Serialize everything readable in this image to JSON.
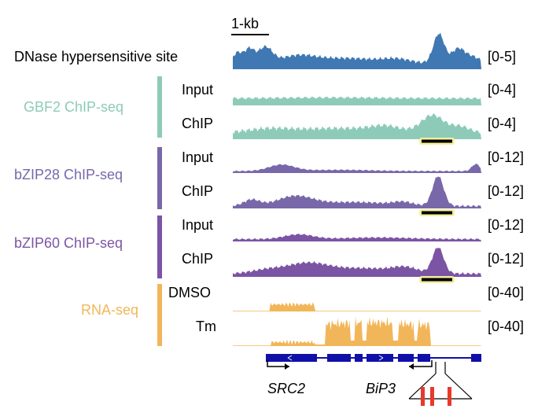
{
  "scale_bar": {
    "label": "1-kb"
  },
  "colors": {
    "dnase": "#3f78b2",
    "gbf2": "#8dcbb8",
    "bzip28": "#7868aa",
    "bzip60": "#7c54a4",
    "rnaseq": "#f2b65a",
    "gene": "#1010a8",
    "mark": "#e8392b",
    "peak_bar_glow": "#f5ef9c"
  },
  "tracks": [
    {
      "id": "dnase",
      "label": "DNase hypersensitive site",
      "range": "[0-5]",
      "color": "#3f78b2"
    },
    {
      "id": "gbf2-input",
      "label": "Input",
      "range": "[0-4]",
      "color": "#8dcbb8"
    },
    {
      "id": "gbf2-chip",
      "label": "ChIP",
      "range": "[0-4]",
      "color": "#8dcbb8"
    },
    {
      "id": "bzip28-input",
      "label": "Input",
      "range": "[0-12]",
      "color": "#7868aa"
    },
    {
      "id": "bzip28-chip",
      "label": "ChIP",
      "range": "[0-12]",
      "color": "#7868aa"
    },
    {
      "id": "bzip60-input",
      "label": "Input",
      "range": "[0-12]",
      "color": "#7c54a4"
    },
    {
      "id": "bzip60-chip",
      "label": "ChIP",
      "range": "[0-12]",
      "color": "#7c54a4"
    },
    {
      "id": "rna-dmso",
      "label": "DMSO",
      "range": "[0-40]",
      "color": "#f2b65a"
    },
    {
      "id": "rna-tm",
      "label": "Tm",
      "range": "[0-40]",
      "color": "#f2b65a"
    }
  ],
  "groups": [
    {
      "id": "gbf2",
      "label": "GBF2 ChIP-seq",
      "color": "#8dcbb8"
    },
    {
      "id": "bzip28",
      "label": "bZIP28 ChIP-seq",
      "color": "#7868aa"
    },
    {
      "id": "bzip60",
      "label": "bZIP60 ChIP-seq",
      "color": "#7c54a4"
    },
    {
      "id": "rnaseq",
      "label": "RNA-seq",
      "color": "#f2b65a"
    }
  ],
  "genes": [
    {
      "name": "SRC2"
    },
    {
      "name": "BiP3"
    }
  ]
}
